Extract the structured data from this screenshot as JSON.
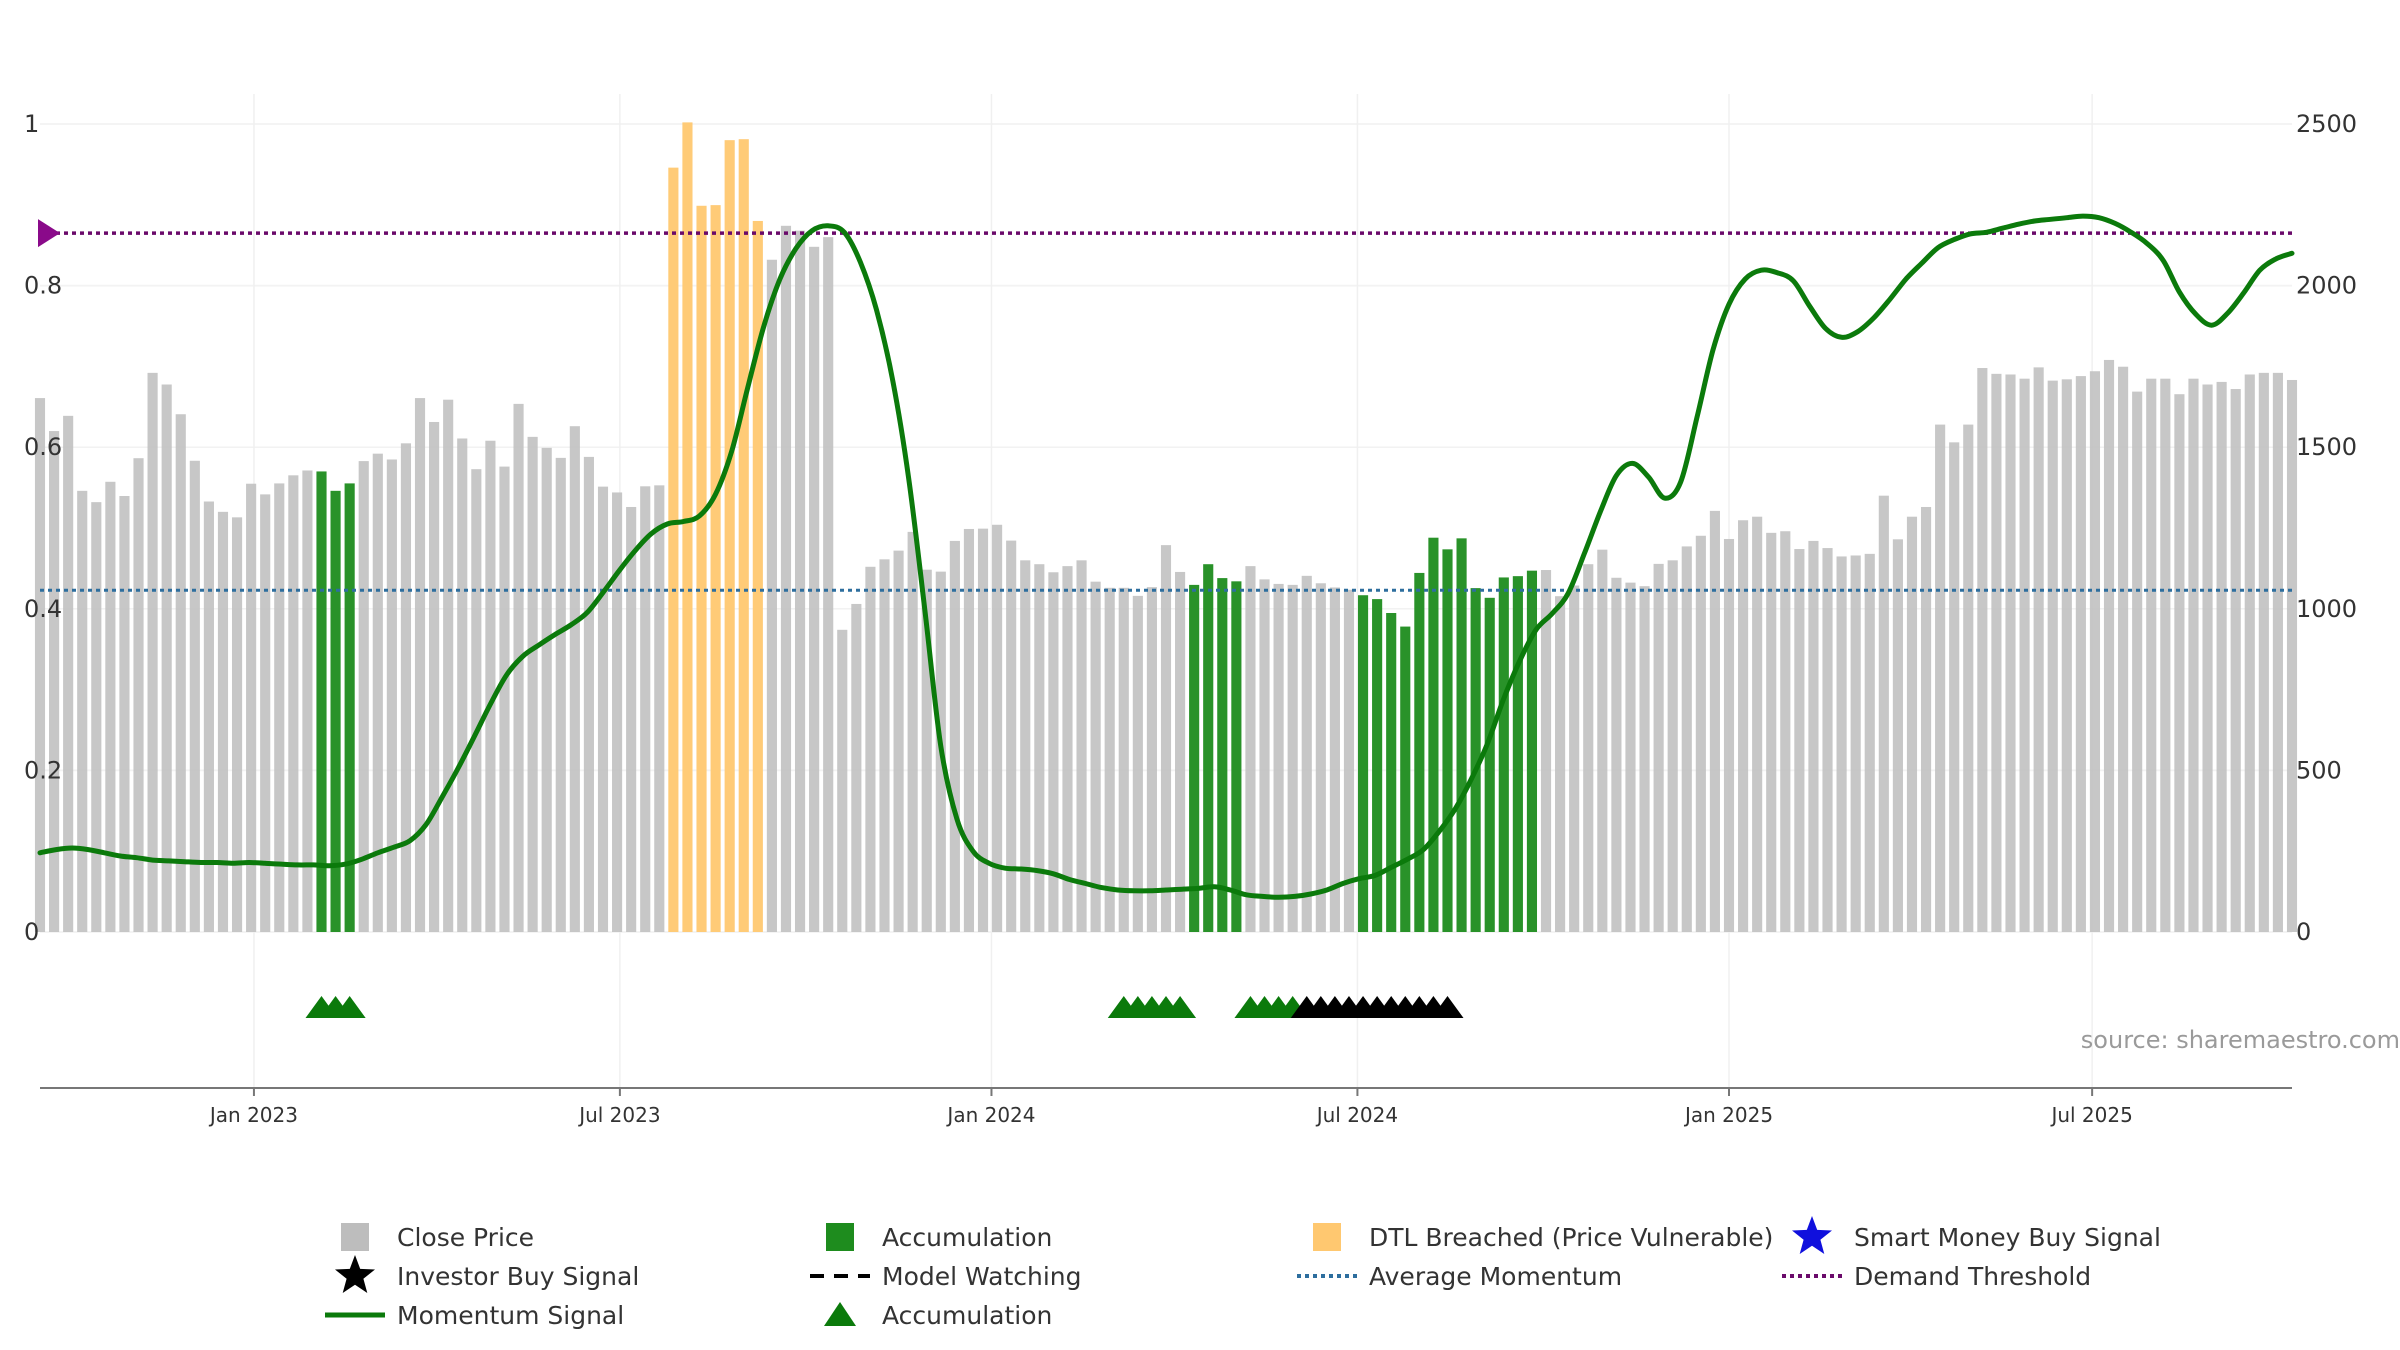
{
  "source_text": "source: sharemaestro.com",
  "colors": {
    "close": "#bdbdbd",
    "accumulation": "#1e8c1e",
    "dtl": "#ffc870",
    "momentum": "#0b7a0b",
    "average": "#2d6e9e",
    "demand": "#6a0a6a",
    "triangle": "#0b7a0b",
    "investor": "#000000",
    "smart": "#1010dd"
  },
  "chart_data": {
    "type": "bar+line",
    "x_start": "2022-10",
    "x_ticks": [
      "Jan 2023",
      "Jul 2023",
      "Jan 2024",
      "Jul 2024",
      "Jan 2025",
      "Jul 2025"
    ],
    "left_axis": {
      "ticks": [
        "0",
        "0.2",
        "0.4",
        "0.6",
        "0.8",
        "1"
      ],
      "range": [
        0,
        1
      ]
    },
    "right_axis": {
      "ticks": [
        "0",
        "500",
        "1000",
        "1500",
        "2000",
        "2500"
      ],
      "range": [
        0,
        2500
      ]
    },
    "bar_categories": [
      "c",
      "c",
      "c",
      "c",
      "c",
      "c",
      "c",
      "c",
      "c",
      "c",
      "c",
      "c",
      "c",
      "c",
      "c",
      "c",
      "c",
      "c",
      "c",
      "c",
      "a",
      "a",
      "a",
      "c",
      "c",
      "c",
      "c",
      "c",
      "c",
      "c",
      "c",
      "c",
      "c",
      "c",
      "c",
      "c",
      "c",
      "c",
      "c",
      "c",
      "c",
      "c",
      "c",
      "c",
      "c",
      "d",
      "d",
      "d",
      "d",
      "d",
      "d",
      "d",
      "c",
      "c",
      "c",
      "c",
      "c",
      "c",
      "c",
      "c",
      "c",
      "c",
      "c",
      "c",
      "c",
      "c",
      "c",
      "c",
      "c",
      "c",
      "c",
      "c",
      "c",
      "c",
      "c",
      "c",
      "c",
      "c",
      "c",
      "c",
      "c",
      "c",
      "a",
      "a",
      "a",
      "a",
      "c",
      "c",
      "c",
      "c",
      "c",
      "c",
      "c",
      "c",
      "a",
      "a",
      "a",
      "a",
      "a",
      "a",
      "a",
      "a",
      "a",
      "a",
      "a",
      "a",
      "a",
      "c",
      "c",
      "c",
      "c",
      "c",
      "c",
      "c",
      "c",
      "c",
      "c",
      "c",
      "c",
      "c",
      "c",
      "c",
      "c",
      "c",
      "c",
      "c",
      "c",
      "c",
      "c",
      "c",
      "c",
      "c",
      "c",
      "c",
      "c",
      "c",
      "c",
      "c",
      "c",
      "c",
      "c",
      "c",
      "c",
      "c",
      "c",
      "c",
      "c",
      "c",
      "c",
      "c",
      "c",
      "c",
      "c",
      "c",
      "c",
      "c",
      "c",
      "c",
      "c",
      "c",
      "c"
    ],
    "close_price": [
      1652,
      1550,
      1597,
      1365,
      1330,
      1393,
      1349,
      1466,
      1730,
      1694,
      1602,
      1458,
      1332,
      1300,
      1283,
      1387,
      1354,
      1388,
      1413,
      1428,
      1425,
      1365,
      1388,
      1457,
      1480,
      1462,
      1512,
      1652,
      1578,
      1647,
      1527,
      1432,
      1520,
      1440,
      1634,
      1532,
      1498,
      1467,
      1565,
      1470,
      1378,
      1360,
      1315,
      1379,
      1382,
      2365,
      2505,
      2247,
      2249,
      2450,
      2453,
      2200,
      2080,
      2185,
      2170,
      2120,
      2150,
      935,
      1015,
      1130,
      1153,
      1180,
      1238,
      1121,
      1115,
      1210,
      1247,
      1248,
      1260,
      1211,
      1150,
      1138,
      1113,
      1132,
      1150,
      1084,
      1065,
      1065,
      1040,
      1067,
      1197,
      1114,
      1074,
      1138,
      1095,
      1085,
      1132,
      1091,
      1077,
      1074,
      1102,
      1079,
      1066,
      1059,
      1042,
      1030,
      987,
      945,
      1111,
      1220,
      1184,
      1218,
      1064,
      1034,
      1097,
      1101,
      1118,
      1120,
      1039,
      1072,
      1138,
      1183,
      1096,
      1081,
      1070,
      1139,
      1150,
      1193,
      1226,
      1303,
      1216,
      1274,
      1285,
      1235,
      1240,
      1185,
      1210,
      1188,
      1162,
      1165,
      1170,
      1350,
      1215,
      1285,
      1315,
      1570,
      1515,
      1570,
      1745,
      1727,
      1725,
      1712,
      1747,
      1706,
      1710,
      1720,
      1735,
      1770,
      1749,
      1672,
      1712,
      1712,
      1664,
      1712,
      1694,
      1702,
      1680,
      1725,
      1730,
      1730,
      1708
    ],
    "momentum": [
      0.098,
      0.102,
      0.104,
      0.102,
      0.098,
      0.094,
      0.092,
      0.089,
      0.088,
      0.087,
      0.086,
      0.086,
      0.085,
      0.086,
      0.085,
      0.084,
      0.083,
      0.083,
      0.082,
      0.084,
      0.09,
      0.098,
      0.105,
      0.113,
      0.133,
      0.167,
      0.203,
      0.242,
      0.282,
      0.318,
      0.341,
      0.355,
      0.368,
      0.38,
      0.395,
      0.42,
      0.447,
      0.472,
      0.493,
      0.505,
      0.508,
      0.515,
      0.542,
      0.595,
      0.674,
      0.75,
      0.808,
      0.846,
      0.868,
      0.874,
      0.866,
      0.829,
      0.77,
      0.684,
      0.562,
      0.4,
      0.23,
      0.14,
      0.1,
      0.085,
      0.079,
      0.078,
      0.076,
      0.072,
      0.065,
      0.06,
      0.055,
      0.052,
      0.051,
      0.051,
      0.052,
      0.053,
      0.054,
      0.056,
      0.052,
      0.046,
      0.044,
      0.043,
      0.044,
      0.047,
      0.052,
      0.06,
      0.066,
      0.07,
      0.08,
      0.09,
      0.102,
      0.125,
      0.153,
      0.19,
      0.234,
      0.289,
      0.336,
      0.374,
      0.394,
      0.419,
      0.468,
      0.52,
      0.565,
      0.58,
      0.563,
      0.537,
      0.557,
      0.636,
      0.72,
      0.777,
      0.808,
      0.819,
      0.816,
      0.806,
      0.775,
      0.747,
      0.736,
      0.743,
      0.76,
      0.783,
      0.808,
      0.828,
      0.847,
      0.857,
      0.864,
      0.866,
      0.871,
      0.876,
      0.88,
      0.882,
      0.884,
      0.886,
      0.884,
      0.877,
      0.866,
      0.852,
      0.831,
      0.792,
      0.765,
      0.751,
      0.766,
      0.791,
      0.819,
      0.833,
      0.84
    ],
    "average_momentum": 0.423,
    "demand_threshold": 0.865,
    "accumulation_markers": [
      20,
      21,
      22,
      77,
      78,
      79,
      80,
      81,
      86,
      87,
      88,
      89
    ],
    "investor_markers": [
      90,
      91,
      92,
      93,
      94,
      95,
      96,
      97,
      98,
      99,
      100
    ]
  },
  "legend": [
    {
      "label": "Close Price",
      "kind": "square",
      "color": "close"
    },
    {
      "label": "Accumulation",
      "kind": "square",
      "color": "accumulation"
    },
    {
      "label": "DTL Breached (Price Vulnerable)",
      "kind": "square",
      "color": "dtl"
    },
    {
      "label": "Smart Money Buy Signal",
      "kind": "star",
      "color": "smart"
    },
    {
      "label": "Investor Buy Signal",
      "kind": "star",
      "color": "investor"
    },
    {
      "label": "Model Watching",
      "kind": "dash",
      "color": "investor"
    },
    {
      "label": "Average Momentum",
      "kind": "dotted",
      "color": "average"
    },
    {
      "label": "Demand Threshold",
      "kind": "dotted",
      "color": "demand"
    },
    {
      "label": "Momentum Signal",
      "kind": "solid",
      "color": "momentum"
    },
    {
      "label": "Accumulation",
      "kind": "triangle",
      "color": "triangle"
    }
  ]
}
